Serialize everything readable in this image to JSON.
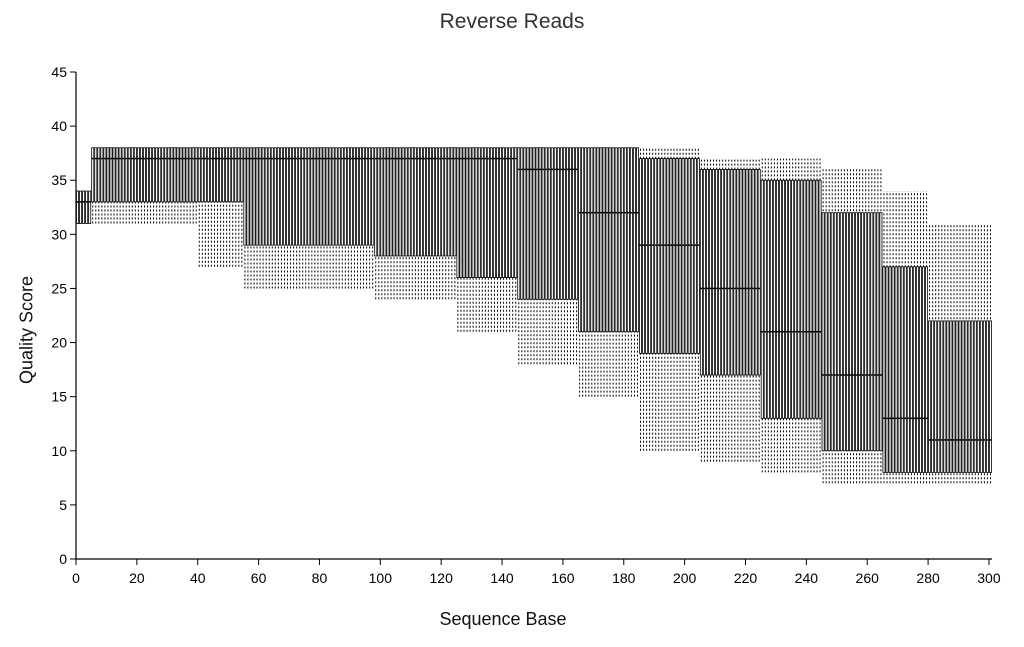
{
  "chart_data": {
    "type": "boxplot",
    "title": "Reverse Reads",
    "xlabel": "Sequence Base",
    "ylabel": "Quality Score",
    "xlim": [
      0,
      301
    ],
    "ylim": [
      0,
      45
    ],
    "x_ticks": [
      0,
      20,
      40,
      60,
      80,
      100,
      120,
      140,
      160,
      180,
      200,
      220,
      240,
      260,
      280,
      300
    ],
    "y_ticks": [
      0,
      5,
      10,
      15,
      20,
      25,
      30,
      35,
      40,
      45
    ],
    "grid": false,
    "colors": {
      "box": "#000000",
      "whisker": "#000000",
      "axis": "#000000"
    },
    "segments": [
      {
        "x": [
          1,
          5
        ],
        "whisker_low": 31,
        "q1": 31,
        "median": 33,
        "q3": 34,
        "whisker_high": 34
      },
      {
        "x": [
          6,
          40
        ],
        "whisker_low": 31,
        "q1": 33,
        "median": 37,
        "q3": 38,
        "whisker_high": 38
      },
      {
        "x": [
          41,
          55
        ],
        "whisker_low": 27,
        "q1": 33,
        "median": 37,
        "q3": 38,
        "whisker_high": 38
      },
      {
        "x": [
          56,
          98
        ],
        "whisker_low": 25,
        "q1": 29,
        "median": 37,
        "q3": 38,
        "whisker_high": 38
      },
      {
        "x": [
          99,
          125
        ],
        "whisker_low": 24,
        "q1": 28,
        "median": 37,
        "q3": 38,
        "whisker_high": 38
      },
      {
        "x": [
          126,
          145
        ],
        "whisker_low": 21,
        "q1": 26,
        "median": 37,
        "q3": 38,
        "whisker_high": 38
      },
      {
        "x": [
          146,
          165
        ],
        "whisker_low": 18,
        "q1": 24,
        "median": 36,
        "q3": 38,
        "whisker_high": 38
      },
      {
        "x": [
          166,
          185
        ],
        "whisker_low": 15,
        "q1": 21,
        "median": 32,
        "q3": 38,
        "whisker_high": 38
      },
      {
        "x": [
          186,
          205
        ],
        "whisker_low": 10,
        "q1": 19,
        "median": 29,
        "q3": 37,
        "whisker_high": 38
      },
      {
        "x": [
          206,
          225
        ],
        "whisker_low": 9,
        "q1": 17,
        "median": 25,
        "q3": 36,
        "whisker_high": 37
      },
      {
        "x": [
          226,
          245
        ],
        "whisker_low": 8,
        "q1": 13,
        "median": 21,
        "q3": 35,
        "whisker_high": 37
      },
      {
        "x": [
          246,
          265
        ],
        "whisker_low": 7,
        "q1": 10,
        "median": 17,
        "q3": 32,
        "whisker_high": 36
      },
      {
        "x": [
          266,
          280
        ],
        "whisker_low": 7,
        "q1": 8,
        "median": 13,
        "q3": 27,
        "whisker_high": 34
      },
      {
        "x": [
          281,
          301
        ],
        "whisker_low": 7,
        "q1": 8,
        "median": 11,
        "q3": 22,
        "whisker_high": 31
      }
    ]
  }
}
